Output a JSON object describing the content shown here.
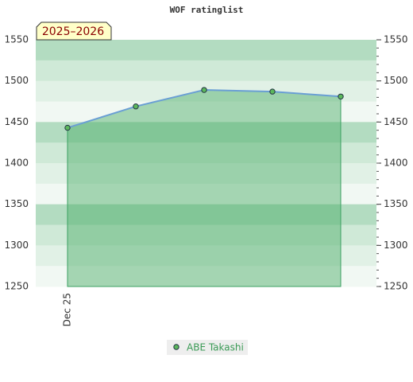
{
  "chart_data": {
    "type": "line",
    "title": "WOF ratinglist",
    "season_label": "2025–2026",
    "categories": [
      "Dec 25",
      null,
      null,
      null,
      null
    ],
    "series": [
      {
        "name": "ABE Takashi",
        "color": "#5cb85c",
        "line_color": "#6a9fd4",
        "values": [
          1443,
          1469,
          1489,
          1487,
          1481
        ]
      }
    ],
    "ylim": [
      1250,
      1550
    ],
    "yticks": [
      1250,
      1300,
      1350,
      1400,
      1450,
      1500,
      1550
    ],
    "grid": true
  }
}
